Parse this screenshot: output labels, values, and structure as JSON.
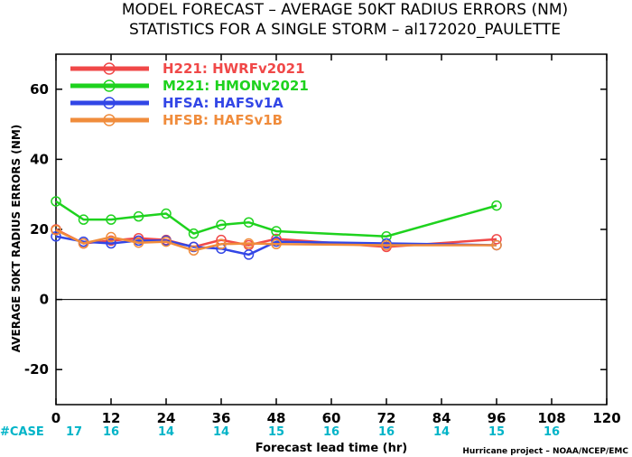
{
  "title": {
    "line1": "MODEL FORECAST – AVERAGE 50KT RADIUS ERRORS (NM)",
    "line2": "STATISTICS FOR A SINGLE STORM – al172020_PAULETTE"
  },
  "footer": {
    "case_label": "#CASE",
    "credit": "Hurricane project – NOAA/NCEP/EMC"
  },
  "chart_data": {
    "type": "line",
    "xlabel": "Forecast lead time (hr)",
    "ylabel": "AVERAGE 50KT RADIUS ERRORS (NM)",
    "xlim": [
      0,
      120
    ],
    "ylim": [
      -30,
      70
    ],
    "xticks": [
      0,
      12,
      24,
      36,
      48,
      60,
      72,
      84,
      96,
      108,
      120
    ],
    "yticks": [
      -20,
      0,
      20,
      40,
      60
    ],
    "zero_line": true,
    "legend_position": "top-left",
    "cases": [
      {
        "x": 0,
        "n": "17"
      },
      {
        "x": 12,
        "n": "16"
      },
      {
        "x": 24,
        "n": "14"
      },
      {
        "x": 36,
        "n": "14"
      },
      {
        "x": 48,
        "n": "15"
      },
      {
        "x": 60,
        "n": "16"
      },
      {
        "x": 72,
        "n": "16"
      },
      {
        "x": 84,
        "n": "14"
      },
      {
        "x": 96,
        "n": "15"
      },
      {
        "x": 108,
        "n": "16"
      }
    ],
    "series": [
      {
        "code": "H221:",
        "name": "HWRFv2021",
        "color": "#f04848",
        "x": [
          0,
          6,
          12,
          18,
          24,
          30,
          36,
          42,
          48,
          72,
          96
        ],
        "y": [
          20.0,
          16.0,
          16.8,
          17.5,
          17.0,
          15.0,
          17.0,
          15.5,
          17.3,
          15.0,
          17.2
        ]
      },
      {
        "code": "M221:",
        "name": "HMONv2021",
        "color": "#1ed21e",
        "x": [
          0,
          6,
          12,
          18,
          24,
          30,
          36,
          42,
          48,
          72,
          96
        ],
        "y": [
          28.0,
          22.8,
          22.8,
          23.7,
          24.5,
          18.8,
          21.3,
          22.0,
          19.5,
          18.0,
          26.8
        ]
      },
      {
        "code": "HFSA:",
        "name": "HAFSv1A",
        "color": "#3246e6",
        "x": [
          0,
          6,
          12,
          18,
          24,
          30,
          36,
          42,
          48,
          72,
          96
        ],
        "y": [
          18.0,
          16.5,
          16.0,
          16.8,
          16.8,
          15.0,
          14.5,
          12.8,
          16.5,
          16.0,
          15.5
        ]
      },
      {
        "code": "HFSB:",
        "name": "HAFSv1B",
        "color": "#f08c3c",
        "x": [
          0,
          6,
          12,
          18,
          24,
          30,
          36,
          42,
          48,
          72,
          96
        ],
        "y": [
          19.8,
          16.0,
          17.8,
          16.2,
          16.5,
          14.0,
          15.8,
          16.0,
          15.8,
          15.5,
          15.5
        ]
      }
    ]
  }
}
